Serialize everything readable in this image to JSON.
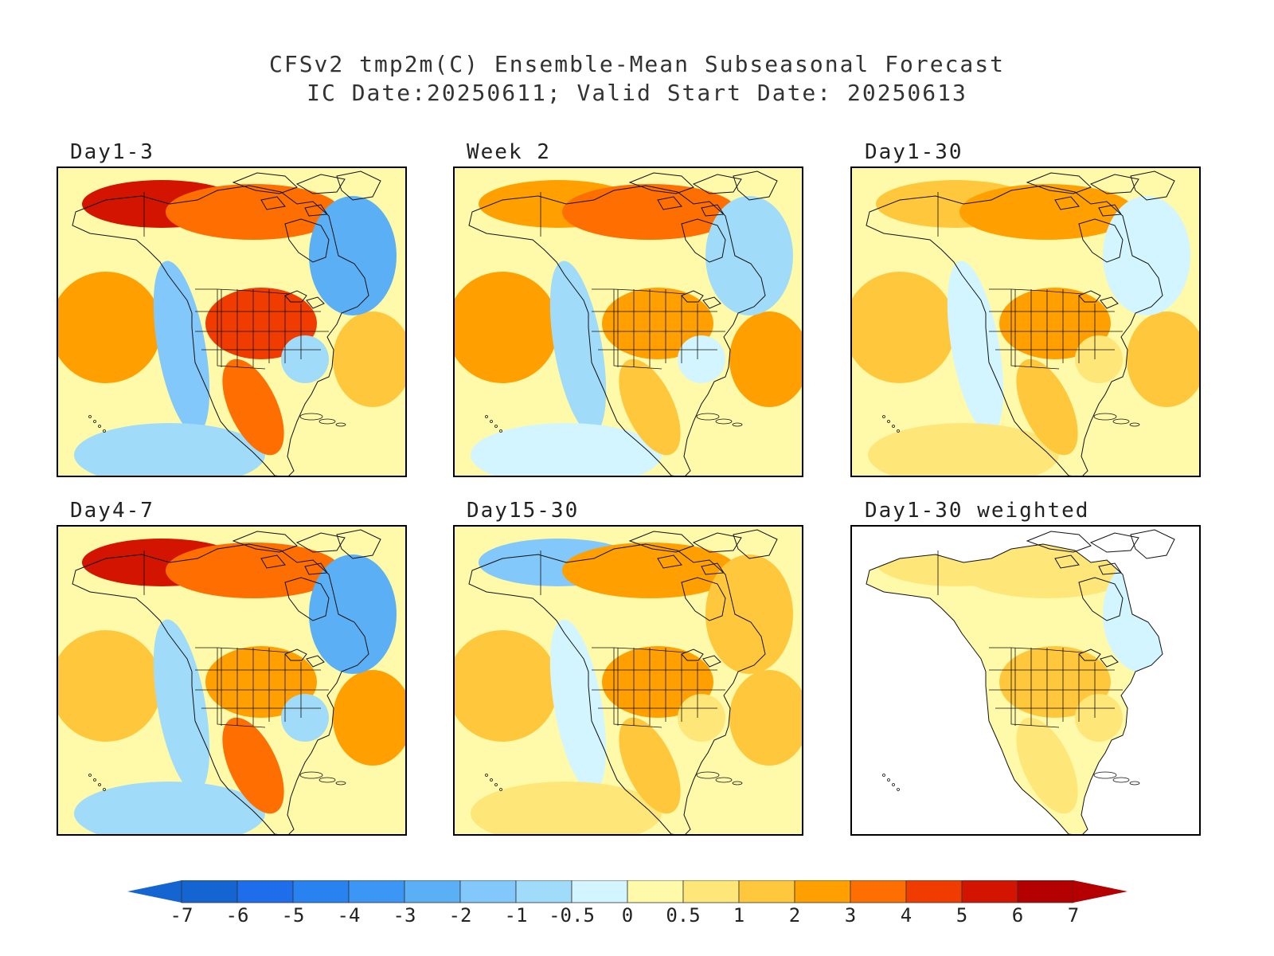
{
  "title_line1": "CFSv2 tmp2m(C) Ensemble-Mean Subseasonal Forecast",
  "title_line2": "IC Date:20250611; Valid Start Date: 20250613",
  "panels": [
    {
      "id": "day1-3",
      "label": "Day1-3",
      "row": 0,
      "col": 0,
      "anomalies": {
        "alaska_yukon": 5,
        "north_canada": 3,
        "hudson_east": -3,
        "northwest_pacific": 2,
        "west_coast": -2,
        "us_plains": 4,
        "southeast_us": -1,
        "mexico": 3,
        "central_pacific": -1,
        "atlantic": 1
      }
    },
    {
      "id": "week2",
      "label": "Week 2",
      "row": 0,
      "col": 1,
      "anomalies": {
        "alaska_yukon": 2,
        "north_canada": 3,
        "hudson_east": -1,
        "northwest_pacific": 2,
        "west_coast": -1,
        "us_plains": 2,
        "southeast_us": -0.5,
        "mexico": 1,
        "central_pacific": -0.5,
        "atlantic": 2
      }
    },
    {
      "id": "day1-30",
      "label": "Day1-30",
      "row": 0,
      "col": 2,
      "anomalies": {
        "alaska_yukon": 1,
        "north_canada": 2,
        "hudson_east": -0.5,
        "northwest_pacific": 1,
        "west_coast": -0.5,
        "us_plains": 2,
        "southeast_us": 0.5,
        "mexico": 1,
        "central_pacific": 0.5,
        "atlantic": 1
      }
    },
    {
      "id": "day4-7",
      "label": "Day4-7",
      "row": 1,
      "col": 0,
      "anomalies": {
        "alaska_yukon": 5,
        "north_canada": 3,
        "hudson_east": -3,
        "northwest_pacific": 1,
        "west_coast": -1,
        "us_plains": 2,
        "southeast_us": -1,
        "mexico": 3,
        "central_pacific": -1,
        "atlantic": 2
      }
    },
    {
      "id": "day15-30",
      "label": "Day15-30",
      "row": 1,
      "col": 1,
      "anomalies": {
        "alaska_yukon": -2,
        "north_canada": 2,
        "hudson_east": 1,
        "northwest_pacific": 1,
        "west_coast": -0.5,
        "us_plains": 2,
        "southeast_us": 0.5,
        "mexico": 1,
        "central_pacific": 0.5,
        "atlantic": 1
      }
    },
    {
      "id": "day1-30-weighted",
      "label": "Day1-30 weighted",
      "row": 1,
      "col": 2,
      "ocean_masked": true,
      "anomalies": {
        "alaska_yukon": 0.5,
        "north_canada": 0.5,
        "hudson_east": -0.5,
        "northwest_pacific": 0,
        "west_coast": 0,
        "us_plains": 1,
        "southeast_us": 0.5,
        "mexico": 0.5,
        "central_pacific": 0,
        "atlantic": 0
      }
    }
  ],
  "colorbar": {
    "labels": [
      "-7",
      "-6",
      "-5",
      "-4",
      "-3",
      "-2",
      "-1",
      "-0.5",
      "0",
      "0.5",
      "1",
      "2",
      "3",
      "4",
      "5",
      "6",
      "7"
    ],
    "colors": [
      "#1464d2",
      "#1e6eeb",
      "#2882f0",
      "#3c96f5",
      "#5aaff5",
      "#82c8fa",
      "#a0dcfa",
      "#d2f5ff",
      "#fffaaa",
      "#ffe678",
      "#ffc83c",
      "#ffa000",
      "#ff6e00",
      "#f03c00",
      "#d21400",
      "#b40000"
    ],
    "under_color": "#1464d2",
    "over_color": "#b40000"
  }
}
